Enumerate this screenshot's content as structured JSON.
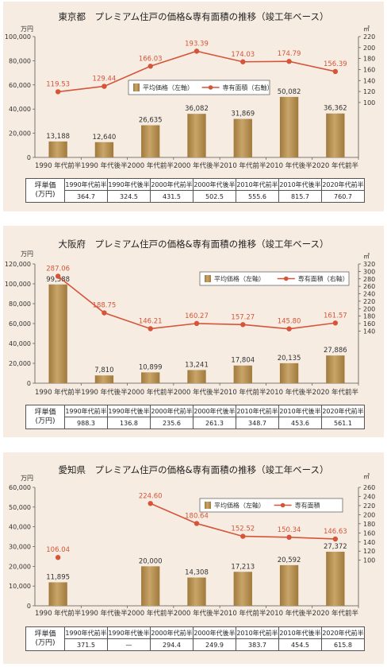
{
  "colors": {
    "bar": "#c9a56a",
    "bar_dark": "#a07a3c",
    "line": "#d4553a",
    "panel": "#f7ece1"
  },
  "labels": {
    "left_unit": "万円",
    "right_unit": "㎡",
    "tsubo_label_1": "坪単価",
    "tsubo_label_2": "(万円)"
  },
  "chart_data": [
    {
      "type": "bar",
      "title": "東京都　プレミアム住戸の価格&専有面積の推移（竣工年ベース）",
      "categories": [
        "1990 年代前半",
        "1990 年代後半",
        "2000 年代前半",
        "2000 年代後半",
        "2010 年代前半",
        "2010 年代後半",
        "2020 年代前半"
      ],
      "series": [
        {
          "name": "平均価格（左軸）",
          "type": "bar",
          "values": [
            13188,
            12640,
            26635,
            36082,
            31869,
            50082,
            36362
          ],
          "labels": [
            "13,188",
            "12,640",
            "26,635",
            "36,082",
            "31,869",
            "50,082",
            "36,362"
          ]
        },
        {
          "name": "専有面積（右軸）",
          "type": "line",
          "values": [
            119.53,
            129.44,
            166.03,
            193.39,
            174.03,
            174.79,
            156.39
          ],
          "labels": [
            "119.53",
            "129.44",
            "166.03",
            "193.39",
            "174.03",
            "174.79",
            "156.39"
          ]
        }
      ],
      "ylim": [
        0,
        100000
      ],
      "yticks": [
        "0",
        "20,000",
        "40,000",
        "60,000",
        "80,000",
        "100,000"
      ],
      "y2lim": [
        0,
        220
      ],
      "y2ticks": [
        "100",
        "120",
        "140",
        "160",
        "180",
        "200",
        "220"
      ],
      "legend_position": "center",
      "tsubo_headers": [
        "1990年代前半",
        "1990年代後半",
        "2000年代前半",
        "2000年代後半",
        "2010年代前半",
        "2010年代後半",
        "2020年代前半"
      ],
      "tsubo_values": [
        "364.7",
        "324.5",
        "431.5",
        "502.5",
        "555.6",
        "815.7",
        "760.7"
      ]
    },
    {
      "type": "bar",
      "title": "大阪府　プレミアム住戸の価格&専有面積の推移（竣工年ベース）",
      "categories": [
        "1990 年代前半",
        "1990 年代後半",
        "2000 年代前半",
        "2000 年代後半",
        "2010 年代前半",
        "2010 年代後半",
        "2020 年代前半"
      ],
      "series": [
        {
          "name": "平均価格（左軸）",
          "type": "bar",
          "values": [
            99388,
            7810,
            10899,
            13241,
            17804,
            20135,
            27886
          ],
          "labels": [
            "99,388",
            "7,810",
            "10,899",
            "13,241",
            "17,804",
            "20,135",
            "27,886"
          ]
        },
        {
          "name": "専有面積（右軸）",
          "type": "line",
          "values": [
            287.06,
            188.75,
            146.21,
            160.27,
            157.27,
            145.8,
            161.57
          ],
          "labels": [
            "287.06",
            "188.75",
            "146.21",
            "160.27",
            "157.27",
            "145.80",
            "161.57"
          ]
        }
      ],
      "ylim": [
        0,
        120000
      ],
      "yticks": [
        "0",
        "20,000",
        "40,000",
        "60,000",
        "80,000",
        "100,000",
        "120,000"
      ],
      "y2lim": [
        0,
        320
      ],
      "y2ticks": [
        "140",
        "160",
        "180",
        "200",
        "220",
        "240",
        "260",
        "280",
        "300",
        "320"
      ],
      "legend_position": "top-right",
      "tsubo_headers": [
        "1990年代前半",
        "1990年代後半",
        "2000年代前半",
        "2000年代後半",
        "2010年代前半",
        "2010年代後半",
        "2020年代前半"
      ],
      "tsubo_values": [
        "988.3",
        "136.8",
        "235.6",
        "261.3",
        "348.7",
        "453.6",
        "561.1"
      ]
    },
    {
      "type": "bar",
      "title": "愛知県　プレミアム住戸の価格&専有面積の推移（竣工年ベース）",
      "categories": [
        "1990 年代前半",
        "1990 年代後半",
        "2000 年代前半",
        "2000 年代後半",
        "2010 年代前半",
        "2010 年代後半",
        "2020 年代前半"
      ],
      "series": [
        {
          "name": "平均価格（左軸）",
          "type": "bar",
          "values": [
            11895,
            null,
            20000,
            14308,
            17213,
            20592,
            27372
          ],
          "labels": [
            "11,895",
            "",
            "20,000",
            "14,308",
            "17,213",
            "20,592",
            "27,372"
          ]
        },
        {
          "name": "専有面積",
          "type": "line",
          "values": [
            106.04,
            null,
            224.6,
            180.64,
            152.52,
            150.34,
            146.63
          ],
          "labels": [
            "106.04",
            "",
            "224.60",
            "180.64",
            "152.52",
            "150.34",
            "146.63"
          ]
        }
      ],
      "ylim": [
        0,
        60000
      ],
      "yticks": [
        "0",
        "10,000",
        "20,000",
        "30,000",
        "40,000",
        "50,000",
        "60,000"
      ],
      "y2lim": [
        0,
        260
      ],
      "y2ticks": [
        "100",
        "120",
        "140",
        "160",
        "180",
        "200",
        "220",
        "240",
        "260"
      ],
      "legend_position": "top-right",
      "tsubo_headers": [
        "1990年代前半",
        "1990年代後半",
        "2000年代前半",
        "2000年代後半",
        "2010年代前半",
        "2010年代後半",
        "2020年代前半"
      ],
      "tsubo_values": [
        "371.5",
        "—",
        "294.4",
        "249.9",
        "383.7",
        "454.5",
        "615.8"
      ]
    }
  ]
}
